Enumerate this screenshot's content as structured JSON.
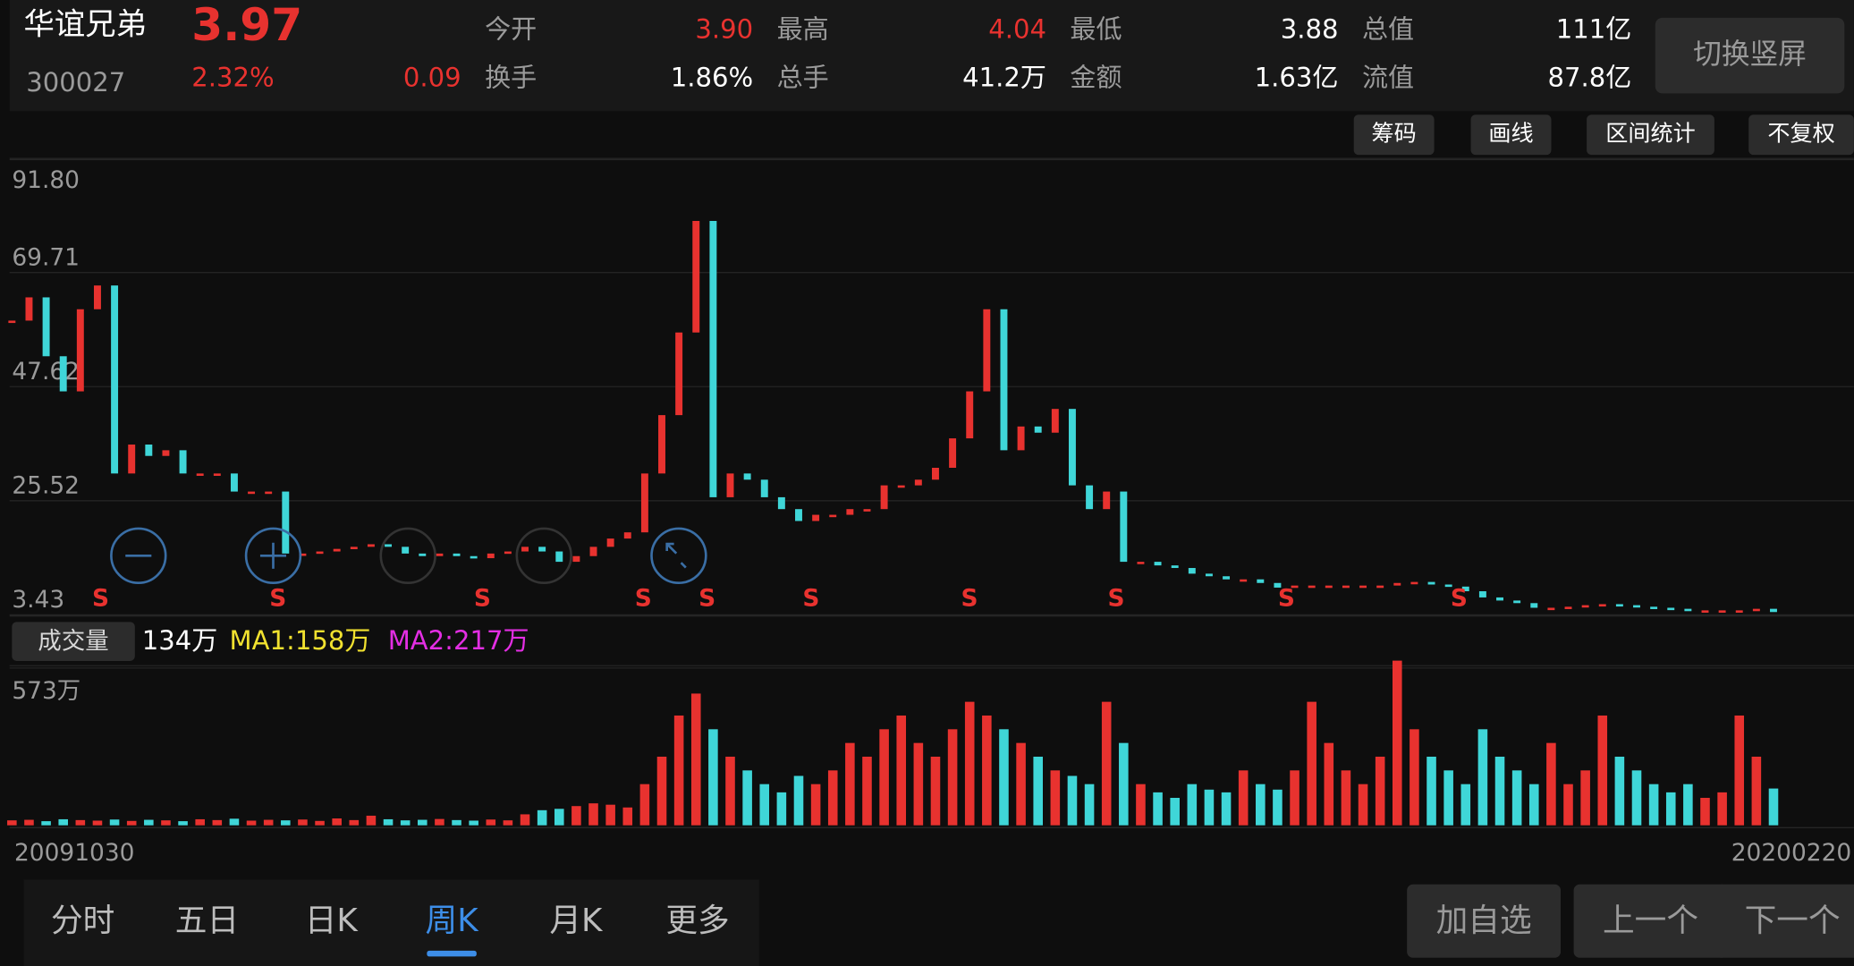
{
  "header": {
    "name": "华谊兄弟",
    "price": "3.97",
    "code": "300027",
    "change_pct": "2.32%",
    "change": "0.09",
    "fields": [
      [
        "今开",
        "3.90"
      ],
      [
        "最高",
        "4.04"
      ],
      [
        "最低",
        "3.88"
      ],
      [
        "总值",
        "111亿"
      ],
      [
        "换手",
        "1.86%"
      ],
      [
        "总手",
        "41.2万"
      ],
      [
        "金额",
        "1.63亿"
      ],
      [
        "流值",
        "87.8亿"
      ]
    ],
    "switch_button": "切换竖屏"
  },
  "toolbar": [
    "筹码",
    "画线",
    "区间统计",
    "不复权"
  ],
  "chart_data": [
    {
      "type": "line",
      "name": "weekly-close",
      "up_color": "#e8322f",
      "down_color": "#3fd6d8",
      "grid": true,
      "ylim": [
        3.43,
        91.8
      ],
      "yticks": [
        3.43,
        25.52,
        47.62,
        69.71,
        {
          "value": 91.8,
          "label": "91.80"
        }
      ],
      "values": [
        60.4,
        64.9,
        53.5,
        46.7,
        62.6,
        67.2,
        30.8,
        36.4,
        34.2,
        35.3,
        30.8,
        30.8,
        30.8,
        27.3,
        27.3,
        27.3,
        15.3,
        15.3,
        15.7,
        16.2,
        16.6,
        17.1,
        16.6,
        15.3,
        14.8,
        15.3,
        14.8,
        14.4,
        15.3,
        15.7,
        16.6,
        15.7,
        13.7,
        14.8,
        16.6,
        18.2,
        19.4,
        30.8,
        42.1,
        58.1,
        79.7,
        26.2,
        30.8,
        29.6,
        26.2,
        23.9,
        21.6,
        22.8,
        22.8,
        23.9,
        23.9,
        28.5,
        28.5,
        29.6,
        31.9,
        37.6,
        46.7,
        62.6,
        35.3,
        39.9,
        38.7,
        43.3,
        28.5,
        23.9,
        27.3,
        13.7,
        13.7,
        13.0,
        12.5,
        11.4,
        10.9,
        10.3,
        10.3,
        9.6,
        8.7,
        9.1,
        9.1,
        9.1,
        9.1,
        9.1,
        9.1,
        9.6,
        9.8,
        9.3,
        8.9,
        8.0,
        6.8,
        6.2,
        5.7,
        4.8,
        4.8,
        5.0,
        5.3,
        5.5,
        5.3,
        5.0,
        4.8,
        4.6,
        4.3,
        4.3,
        4.3,
        4.3,
        4.6,
        3.97
      ],
      "signals": [
        "S",
        "S",
        "S",
        "S",
        "S",
        "S",
        "S",
        "S",
        "S",
        "S"
      ],
      "start_date": "20091030",
      "end_date": "20200220"
    },
    {
      "type": "bar",
      "name": "volume",
      "title": "成交量",
      "latest": "134万",
      "ma1": "MA1:158万",
      "ma2": "MA2:217万",
      "ylim": [
        0,
        573
      ],
      "yticks": [
        {
          "value": 573,
          "label": "573万"
        }
      ],
      "values": [
        18,
        20,
        15,
        22,
        19,
        17,
        21,
        16,
        20,
        18,
        15,
        22,
        19,
        24,
        17,
        20,
        18,
        21,
        16,
        25,
        19,
        35,
        22,
        18,
        20,
        23,
        19,
        17,
        21,
        18,
        40,
        55,
        60,
        70,
        80,
        75,
        65,
        150,
        250,
        400,
        480,
        350,
        250,
        200,
        150,
        120,
        180,
        150,
        200,
        300,
        250,
        350,
        400,
        300,
        250,
        350,
        450,
        400,
        350,
        300,
        250,
        200,
        180,
        150,
        450,
        300,
        150,
        120,
        100,
        150,
        130,
        120,
        200,
        150,
        130,
        200,
        450,
        300,
        200,
        150,
        250,
        600,
        350,
        250,
        200,
        150,
        350,
        250,
        200,
        150,
        300,
        150,
        200,
        400,
        250,
        200,
        150,
        120,
        150,
        100,
        120,
        400,
        250,
        134
      ]
    }
  ],
  "tabs": [
    "分时",
    "五日",
    "日K",
    "周K",
    "月K",
    "更多"
  ],
  "actions": [
    "加自选",
    "上一个",
    "下一个"
  ]
}
